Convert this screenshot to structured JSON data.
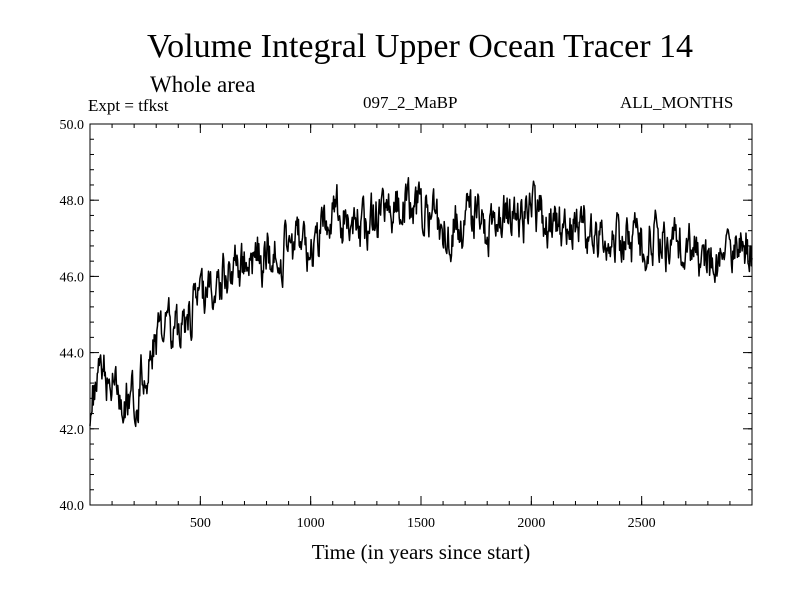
{
  "chart_data": {
    "type": "line",
    "title": "Volume Integral Upper Ocean Tracer 14",
    "subtitle": "Whole area",
    "experiment": "Expt = tfkst",
    "run": "097_2_MaBP",
    "period": "ALL_MONTHS",
    "xlabel": "Time (in years since start)",
    "ylabel": "",
    "xlim": [
      0,
      3000
    ],
    "ylim": [
      40.0,
      50.0
    ],
    "xticks": [
      500,
      1000,
      1500,
      2000,
      2500
    ],
    "xtick_labels": [
      "500",
      "1000",
      "1500",
      "2000",
      "2500"
    ],
    "yticks": [
      40.0,
      42.0,
      44.0,
      46.0,
      48.0,
      50.0
    ],
    "ytick_labels": [
      "40.0",
      "42.0",
      "44.0",
      "46.0",
      "48.0",
      "50.0"
    ],
    "grid": false,
    "series": [
      {
        "name": "Tracer 14",
        "color": "#000000",
        "x": [
          0,
          50,
          100,
          150,
          200,
          250,
          300,
          350,
          400,
          450,
          500,
          550,
          600,
          650,
          700,
          750,
          800,
          850,
          900,
          950,
          1000,
          1050,
          1100,
          1150,
          1200,
          1250,
          1300,
          1350,
          1400,
          1450,
          1500,
          1550,
          1600,
          1650,
          1700,
          1750,
          1800,
          1850,
          1900,
          1950,
          2000,
          2050,
          2100,
          2150,
          2200,
          2250,
          2300,
          2350,
          2400,
          2450,
          2500,
          2550,
          2600,
          2650,
          2700,
          2750,
          2800,
          2850,
          2900,
          2950,
          3000
        ],
        "y": [
          42.6,
          43.4,
          43.3,
          42.9,
          42.8,
          43.6,
          44.2,
          44.5,
          44.7,
          45.0,
          45.6,
          45.7,
          46.1,
          46.3,
          46.4,
          46.6,
          46.5,
          46.7,
          46.6,
          46.9,
          46.8,
          47.4,
          47.8,
          47.5,
          47.2,
          47.3,
          47.6,
          47.7,
          47.9,
          48.0,
          47.9,
          47.8,
          47.1,
          47.3,
          47.6,
          47.4,
          47.2,
          47.5,
          47.7,
          47.5,
          47.6,
          47.6,
          47.4,
          47.3,
          47.5,
          47.2,
          47.1,
          47.0,
          46.9,
          46.9,
          47.0,
          46.9,
          46.8,
          46.9,
          47.0,
          46.6,
          46.4,
          46.1,
          46.5,
          46.8,
          46.7
        ]
      }
    ]
  }
}
